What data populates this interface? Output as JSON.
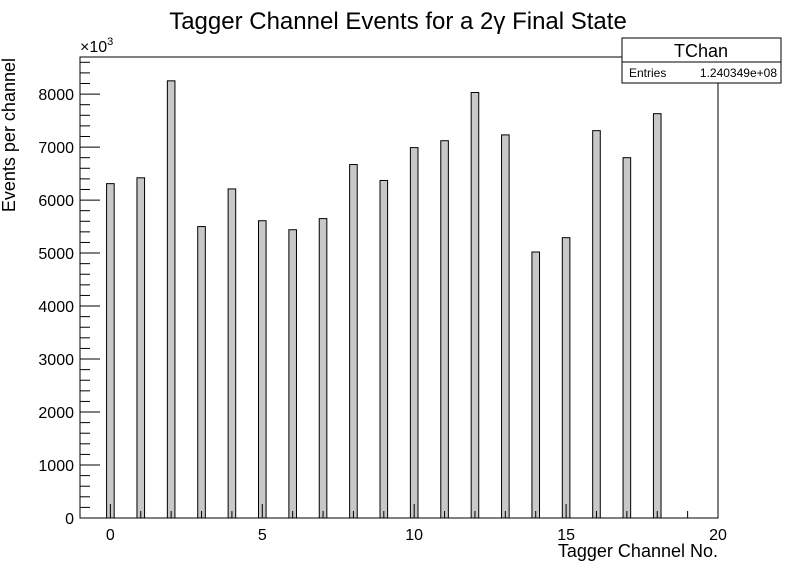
{
  "chart_data": {
    "type": "bar",
    "title": "Tagger Channel Events for a 2γ Final State",
    "xlabel": "Tagger Channel No.",
    "ylabel": "Events per channel",
    "y_multiplier_label": "×10",
    "y_multiplier_exponent": "3",
    "xlim": [
      -1,
      20
    ],
    "ylim": [
      0,
      8700
    ],
    "x_ticks": [
      "0",
      "5",
      "10",
      "15",
      "20"
    ],
    "y_ticks": [
      "0",
      "1000",
      "2000",
      "3000",
      "4000",
      "5000",
      "6000",
      "7000",
      "8000"
    ],
    "grid": false,
    "x": [
      0,
      1,
      2,
      3,
      4,
      5,
      6,
      7,
      8,
      9,
      10,
      11,
      12,
      13,
      14,
      15,
      16,
      17,
      18,
      19
    ],
    "values": [
      6310,
      6420,
      8250,
      5500,
      6210,
      5610,
      5440,
      5650,
      6670,
      6370,
      6990,
      7120,
      8030,
      7230,
      5020,
      5290,
      7310,
      6800,
      7630,
      0
    ],
    "bar_color": "#c8c8c8",
    "stats_box": {
      "name": "TChan",
      "entries_label": "Entries",
      "entries_value": "1.240349e+08"
    }
  }
}
